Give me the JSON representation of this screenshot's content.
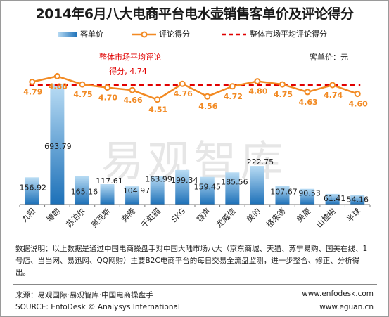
{
  "title": "2014年6月八大电商平台电水壶销售客单价及评论得分",
  "legend": {
    "bar": "客单价",
    "line": "评论得分",
    "avg": "整体市场平均评论得分"
  },
  "unit_label": "客单价：元",
  "watermark": "易观智库",
  "annotations": {
    "avg_label": "整体市场平均评论",
    "avg_value": "得分, 4.74"
  },
  "colors": {
    "bar_top": "#b9dcf4",
    "bar_bottom": "#1c70b8",
    "line": "#f28a23",
    "avg": "#e00000",
    "score_label": "#f28a23",
    "annotation": "#e00000"
  },
  "chart_data": {
    "type": "bar",
    "categories": [
      "九阳",
      "博朗",
      "苏泊尔",
      "奥克斯",
      "奔腾",
      "千虹园",
      "SKG",
      "容声",
      "龙威信",
      "美的",
      "格来德",
      "美菱",
      "山楂树",
      "半球"
    ],
    "series": [
      {
        "name": "客单价",
        "type": "bar",
        "values": [
          156.92,
          693.79,
          165.16,
          117.61,
          104.97,
          163.99,
          199.34,
          159.45,
          185.56,
          222.75,
          107.67,
          90.53,
          61.41,
          54.16
        ]
      },
      {
        "name": "评论得分",
        "type": "line",
        "values": [
          4.79,
          4.88,
          4.75,
          4.7,
          4.66,
          4.51,
          4.76,
          4.56,
          4.72,
          4.8,
          4.75,
          4.63,
          4.74,
          4.6
        ]
      }
    ],
    "reference_line": {
      "name": "整体市场平均评论得分",
      "value": 4.74
    },
    "bar_labels": [
      "156.92",
      "693.79",
      "165.16",
      "117.61",
      "104.97",
      "163.99",
      "199.34",
      "159.45",
      "185.56",
      "222.75",
      "107.67",
      "90.53",
      "61.41",
      "54.16"
    ],
    "line_labels": [
      "4.79",
      "4.88",
      "4.75",
      "4.70",
      "4.66",
      "4.51",
      "4.76",
      "4.56",
      "4.72",
      "4.80",
      "4.75",
      "4.63",
      "4.74",
      "4.60"
    ]
  },
  "note": "数据说明：以上数据是通过中国电商操盘手对中国大陆市场八大（京东商城、天猫、苏宁易购、国美在线、1号店、当当网、易迅网、QQ网购）主要B2C电商平台的每日交易全流盘监测，进一步整合、修正、分析得出。",
  "footer": {
    "source_cn": "来源：易观国际·易观智库·中国电商操盘手",
    "source_en": "SOURCE: EnfoDesk © Analysys International",
    "website_1": "www.enfodesk.com",
    "website_2": "www.eguan.cn"
  }
}
